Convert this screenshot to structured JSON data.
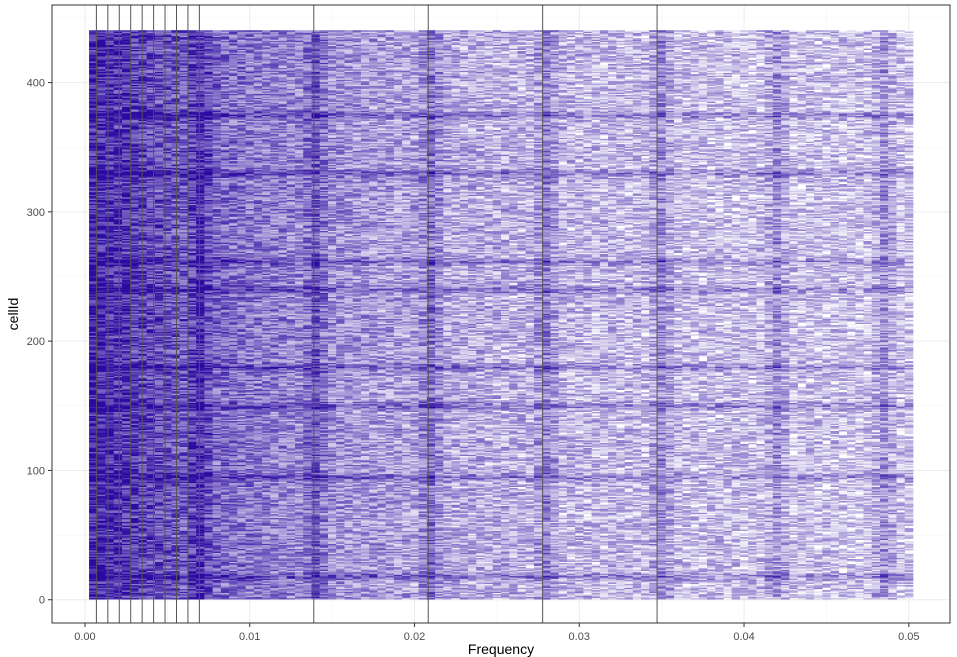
{
  "chart_data": {
    "type": "heatmap",
    "title": "",
    "xlabel": "Frequency",
    "ylabel": "cellId",
    "xlim": [
      -0.002,
      0.0525
    ],
    "ylim": [
      -18,
      460
    ],
    "x_ticks": [
      0.0,
      0.01,
      0.02,
      0.03,
      0.04,
      0.05
    ],
    "x_tick_labels": [
      "0.00",
      "0.01",
      "0.02",
      "0.03",
      "0.04",
      "0.05"
    ],
    "y_ticks": [
      0,
      100,
      200,
      300,
      400
    ],
    "y_tick_labels": [
      "0",
      "100",
      "200",
      "300",
      "400"
    ],
    "grid": true,
    "legend": "none",
    "cell_range": {
      "x": [
        0.0005,
        0.05
      ],
      "y": [
        1,
        440
      ]
    },
    "n_frequency_bins": 100,
    "n_cells": 440,
    "fill_color_low": "#ffffff",
    "fill_color_high": "#2a0aa0",
    "vertical_lines": [
      0.000694,
      0.001389,
      0.002083,
      0.002778,
      0.003472,
      0.004167,
      0.004861,
      0.005556,
      0.00625,
      0.006944,
      0.013889,
      0.020833,
      0.027778,
      0.034722
    ],
    "vline_color": "#555555",
    "high_intensity_bands": [
      0.007,
      0.014,
      0.021,
      0.028,
      0.035,
      0.042,
      0.0485
    ],
    "high_intensity_rows": [
      18,
      95,
      150,
      180,
      240,
      262,
      330,
      375
    ]
  }
}
